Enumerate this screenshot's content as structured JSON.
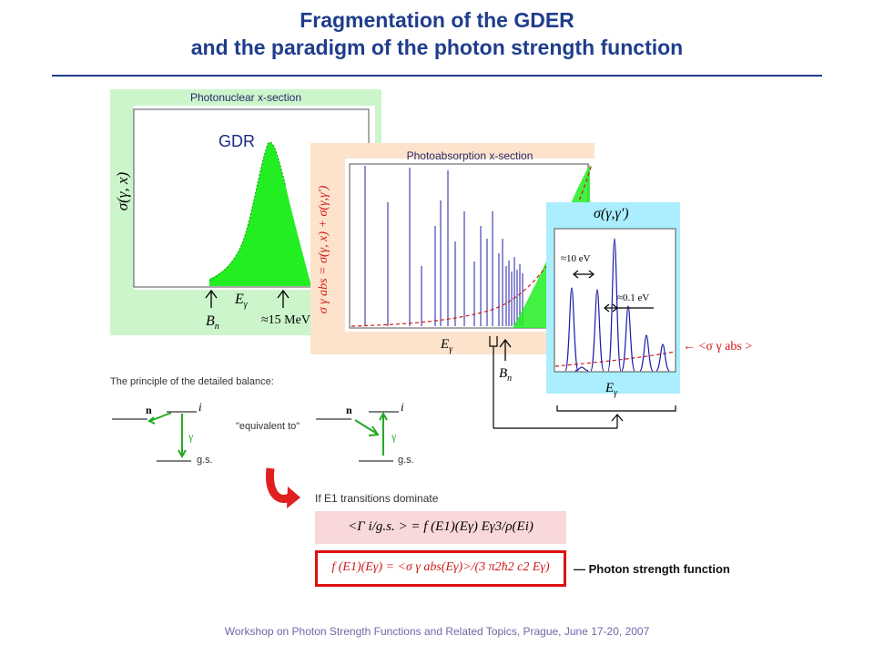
{
  "title_line1": "Fragmentation of the GDER",
  "title_line2": "and the paradigm of the photon strength function",
  "panel1": {
    "header": "Photonuclear x-section",
    "ylabel": "σ(γ, x)",
    "peak_label": "GDR",
    "marker_bn": "B",
    "marker_bn_sub": "n",
    "marker_e": "E",
    "marker_e_sub": "γ",
    "marker_15": "≈15 MeV"
  },
  "panel2": {
    "header": "Photoabsorption x-section",
    "ylabel": "σ γ abs = σ(γ, x) + σ(γ,γ')",
    "marker_e": "E",
    "marker_e_sub": "γ",
    "marker_bn": "B",
    "marker_bn_sub": "n"
  },
  "panel3": {
    "header": "σ(γ,γ')",
    "width_10ev": "≈10 eV",
    "width_01ev": "≈0.1 eV",
    "marker_e": "E",
    "marker_e_sub": "γ",
    "avg_label": "← <σ γ abs >"
  },
  "balance": {
    "heading": "The principle of the detailed balance:",
    "label_n": "n",
    "label_i": "i",
    "label_gamma": "γ",
    "label_gs": "g.s.",
    "equivalent": "\"equivalent to\""
  },
  "e1_text": "If E1 transitions dominate",
  "formula1": "<Γ i/g.s. > = f (E1)(Eγ) Eγ3/ρ(Ei)",
  "formula2": "f (E1)(Eγ) = <σ γ abs(Eγ)>/(3 π2ħ2 c2 Eγ)",
  "psf_label": "— Photon strength function",
  "footer": "Workshop on Photon Strength Functions and Related Topics, Prague, June 17-20, 2007",
  "colors": {
    "title": "#1f3d8c",
    "panel1_bg": "#ccf5cc",
    "panel2_bg": "#fde3cc",
    "panel3_bg": "#aaeeff",
    "green_fill": "#22ee22",
    "blue_lines": "#1c1ca8",
    "red_dashed": "#d01818"
  }
}
